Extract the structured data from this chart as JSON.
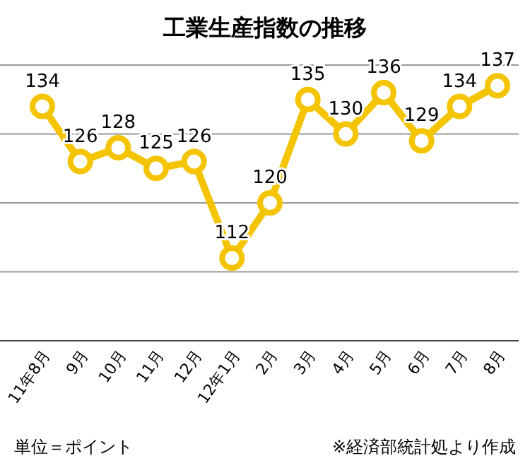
{
  "chart_data": {
    "type": "line",
    "title": "工業生産指数の推移",
    "categories": [
      "11年8月",
      "9月",
      "10月",
      "11月",
      "12月",
      "12年1月",
      "2月",
      "3月",
      "4月",
      "5月",
      "6月",
      "7月",
      "8月"
    ],
    "series": [
      {
        "color": "#f5c400",
        "values": [
          134,
          126,
          128,
          125,
          126,
          112,
          120,
          135,
          130,
          136,
          129,
          134,
          137
        ]
      }
    ],
    "ylim": [
      100,
      140
    ],
    "yticks": [
      {
        "value": 100,
        "label": null
      },
      {
        "value": 110,
        "label": null
      },
      {
        "value": 120,
        "label": null
      },
      {
        "value": 130,
        "label": null
      },
      {
        "value": 140,
        "label": null
      }
    ],
    "tick_labels": "x",
    "grid": "y",
    "marker": "circle",
    "line_style": "solid",
    "data_labels": true,
    "annotations": [
      "単位＝ポイント",
      "※経済部統計処より作成"
    ]
  }
}
